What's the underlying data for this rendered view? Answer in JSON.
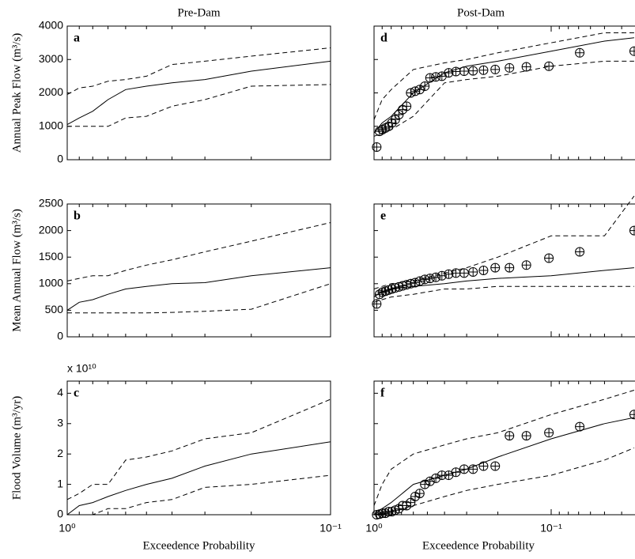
{
  "chart_data": [
    {
      "type": "line",
      "panel": "a",
      "title": "Pre-Dam",
      "ylabel": "Annual Peak Flow (m³/s)",
      "log_x": true,
      "xlim": [
        1,
        0.1
      ],
      "xticks": [
        {
          "value": 1,
          "label": "10⁰"
        },
        {
          "value": 0.1,
          "label": "10⁻¹"
        }
      ],
      "show_xtick_labels": false,
      "ylim": [
        0,
        4000
      ],
      "yticks": [
        0,
        1000,
        2000,
        3000,
        4000
      ],
      "show_ytick_labels": true,
      "x": [
        1,
        0.9,
        0.8,
        0.7,
        0.6,
        0.5,
        0.4,
        0.3,
        0.2,
        0.1
      ],
      "series": [
        {
          "color": "#000000",
          "style": "solid",
          "values": [
            1050,
            1250,
            1450,
            1800,
            2100,
            2200,
            2300,
            2400,
            2650,
            2950
          ]
        },
        {
          "color": "#000000",
          "style": "dashed",
          "values": [
            1950,
            2150,
            2200,
            2350,
            2400,
            2500,
            2850,
            2950,
            3100,
            3350
          ]
        },
        {
          "color": "#000000",
          "style": "dashed",
          "values": [
            1000,
            1000,
            1000,
            1000,
            1250,
            1300,
            1600,
            1800,
            2200,
            2250
          ]
        }
      ]
    },
    {
      "type": "line",
      "panel": "b",
      "ylabel": "Mean Annual Flow (m³/s)",
      "log_x": true,
      "xlim": [
        1,
        0.1
      ],
      "xticks": [
        {
          "value": 1,
          "label": "10⁰"
        },
        {
          "value": 0.1,
          "label": "10⁻¹"
        }
      ],
      "show_xtick_labels": false,
      "ylim": [
        0,
        2500
      ],
      "yticks": [
        0,
        500,
        1000,
        1500,
        2000,
        2500
      ],
      "show_ytick_labels": true,
      "x": [
        1,
        0.9,
        0.8,
        0.7,
        0.6,
        0.5,
        0.4,
        0.3,
        0.2,
        0.1
      ],
      "series": [
        {
          "color": "#000000",
          "style": "solid",
          "values": [
            500,
            650,
            700,
            800,
            900,
            950,
            1000,
            1020,
            1150,
            1300
          ]
        },
        {
          "color": "#000000",
          "style": "dashed",
          "values": [
            1050,
            1100,
            1150,
            1150,
            1250,
            1350,
            1450,
            1600,
            1800,
            2150
          ]
        },
        {
          "color": "#000000",
          "style": "dashed",
          "values": [
            450,
            450,
            450,
            450,
            450,
            450,
            460,
            480,
            520,
            1000
          ]
        }
      ]
    },
    {
      "type": "line",
      "panel": "c",
      "ylabel": "Flood Volume (m³/yr)",
      "multiplier": "x 10¹⁰",
      "xlabel": "Exceedence Probability",
      "log_x": true,
      "xlim": [
        1,
        0.1
      ],
      "xticks": [
        {
          "value": 1,
          "label": "10⁰"
        },
        {
          "value": 0.1,
          "label": "10⁻¹"
        }
      ],
      "show_xtick_labels": true,
      "ylim": [
        0,
        4.4
      ],
      "yticks": [
        0,
        1,
        2,
        3,
        4
      ],
      "show_ytick_labels": true,
      "x": [
        1,
        0.9,
        0.8,
        0.7,
        0.6,
        0.5,
        0.4,
        0.3,
        0.2,
        0.1
      ],
      "series": [
        {
          "color": "#000000",
          "style": "solid",
          "values": [
            0,
            0.3,
            0.4,
            0.6,
            0.8,
            1.0,
            1.2,
            1.6,
            2.0,
            2.4
          ]
        },
        {
          "color": "#000000",
          "style": "dashed",
          "values": [
            0.5,
            0.7,
            1.0,
            1.0,
            1.8,
            1.9,
            2.1,
            2.5,
            2.7,
            3.8
          ]
        },
        {
          "color": "#000000",
          "style": "dashed",
          "values": [
            0,
            0,
            0,
            0.2,
            0.2,
            0.4,
            0.5,
            0.9,
            1.0,
            1.3
          ]
        }
      ]
    },
    {
      "type": "line",
      "panel": "d",
      "title": "Post-Dam",
      "log_x": true,
      "xlim": [
        1,
        0.03
      ],
      "xticks": [
        {
          "value": 1,
          "label": "10⁰"
        },
        {
          "value": 0.1,
          "label": "10⁻¹"
        }
      ],
      "show_xtick_labels": false,
      "ylim": [
        0,
        4000
      ],
      "yticks": [
        0,
        1000,
        2000,
        3000,
        4000
      ],
      "show_ytick_labels": false,
      "x": [
        1,
        0.9,
        0.8,
        0.6,
        0.4,
        0.3,
        0.2,
        0.1,
        0.05,
        0.034
      ],
      "series": [
        {
          "color": "#000000",
          "style": "solid",
          "values": [
            800,
            1100,
            1300,
            2000,
            2600,
            2800,
            2950,
            3250,
            3550,
            3650
          ]
        },
        {
          "color": "#000000",
          "style": "dashed",
          "values": [
            1200,
            1800,
            2100,
            2700,
            2900,
            3000,
            3200,
            3500,
            3800,
            3800
          ]
        },
        {
          "color": "#000000",
          "style": "dashed",
          "values": [
            700,
            800,
            900,
            1300,
            2300,
            2400,
            2500,
            2800,
            2950,
            2950
          ]
        }
      ],
      "observed": {
        "x": [
          0.966,
          0.931,
          0.897,
          0.862,
          0.828,
          0.793,
          0.759,
          0.724,
          0.69,
          0.655,
          0.621,
          0.586,
          0.552,
          0.517,
          0.483,
          0.448,
          0.414,
          0.379,
          0.345,
          0.31,
          0.276,
          0.241,
          0.207,
          0.172,
          0.138,
          0.103,
          0.069,
          0.034
        ],
        "values": [
          380,
          850,
          900,
          950,
          1000,
          1100,
          1200,
          1350,
          1500,
          1600,
          2000,
          2050,
          2100,
          2200,
          2450,
          2480,
          2500,
          2600,
          2640,
          2650,
          2660,
          2680,
          2700,
          2750,
          2780,
          2800,
          3200,
          3250
        ]
      }
    },
    {
      "type": "line",
      "panel": "e",
      "log_x": true,
      "xlim": [
        1,
        0.03
      ],
      "xticks": [
        {
          "value": 1,
          "label": "10⁰"
        },
        {
          "value": 0.1,
          "label": "10⁻¹"
        }
      ],
      "show_xtick_labels": false,
      "ylim": [
        0,
        2500
      ],
      "yticks": [
        0,
        500,
        1000,
        1500,
        2000,
        2500
      ],
      "show_ytick_labels": false,
      "x": [
        1,
        0.9,
        0.8,
        0.6,
        0.4,
        0.3,
        0.2,
        0.1,
        0.05,
        0.034
      ],
      "series": [
        {
          "color": "#000000",
          "style": "solid",
          "values": [
            750,
            850,
            900,
            950,
            1000,
            1050,
            1100,
            1150,
            1250,
            1300
          ]
        },
        {
          "color": "#000000",
          "style": "dashed",
          "values": [
            900,
            950,
            1000,
            1050,
            1200,
            1300,
            1500,
            1900,
            1900,
            2650
          ]
        },
        {
          "color": "#000000",
          "style": "dashed",
          "values": [
            650,
            700,
            750,
            800,
            900,
            900,
            950,
            950,
            950,
            950
          ]
        }
      ],
      "observed": {
        "x": [
          0.966,
          0.931,
          0.897,
          0.862,
          0.828,
          0.793,
          0.759,
          0.724,
          0.69,
          0.655,
          0.621,
          0.586,
          0.552,
          0.517,
          0.483,
          0.448,
          0.414,
          0.379,
          0.345,
          0.31,
          0.276,
          0.241,
          0.207,
          0.172,
          0.138,
          0.103,
          0.069,
          0.034
        ],
        "values": [
          620,
          800,
          840,
          860,
          880,
          900,
          920,
          940,
          960,
          980,
          1000,
          1020,
          1050,
          1080,
          1100,
          1120,
          1150,
          1180,
          1200,
          1200,
          1220,
          1250,
          1300,
          1300,
          1350,
          1480,
          1600,
          2000
        ]
      }
    },
    {
      "type": "line",
      "panel": "f",
      "xlabel": "Exceedence Probability",
      "log_x": true,
      "xlim": [
        1,
        0.03
      ],
      "xticks": [
        {
          "value": 1,
          "label": "10⁰"
        },
        {
          "value": 0.1,
          "label": "10⁻¹"
        }
      ],
      "show_xtick_labels": true,
      "ylim": [
        0,
        4.4
      ],
      "yticks": [
        0,
        1,
        2,
        3,
        4
      ],
      "show_ytick_labels": false,
      "x": [
        1,
        0.9,
        0.8,
        0.6,
        0.4,
        0.3,
        0.2,
        0.1,
        0.05,
        0.034
      ],
      "series": [
        {
          "color": "#000000",
          "style": "solid",
          "values": [
            0,
            0.2,
            0.4,
            1.0,
            1.3,
            1.5,
            1.9,
            2.5,
            3.0,
            3.2
          ]
        },
        {
          "color": "#000000",
          "style": "dashed",
          "values": [
            0.3,
            1.0,
            1.5,
            2.0,
            2.3,
            2.5,
            2.7,
            3.3,
            3.8,
            4.1
          ]
        },
        {
          "color": "#000000",
          "style": "dashed",
          "values": [
            0,
            0,
            0.1,
            0.3,
            0.6,
            0.8,
            1.0,
            1.3,
            1.8,
            2.2
          ]
        }
      ],
      "observed": {
        "x": [
          0.966,
          0.931,
          0.897,
          0.862,
          0.828,
          0.793,
          0.759,
          0.724,
          0.69,
          0.655,
          0.621,
          0.586,
          0.552,
          0.517,
          0.483,
          0.448,
          0.414,
          0.379,
          0.345,
          0.31,
          0.276,
          0.241,
          0.207,
          0.172,
          0.138,
          0.103,
          0.069,
          0.034
        ],
        "values": [
          0,
          0.02,
          0.05,
          0.05,
          0.1,
          0.1,
          0.15,
          0.2,
          0.3,
          0.3,
          0.4,
          0.6,
          0.7,
          1.0,
          1.1,
          1.2,
          1.3,
          1.3,
          1.4,
          1.5,
          1.5,
          1.6,
          1.6,
          2.6,
          2.6,
          2.7,
          2.9,
          3.3
        ]
      }
    }
  ]
}
